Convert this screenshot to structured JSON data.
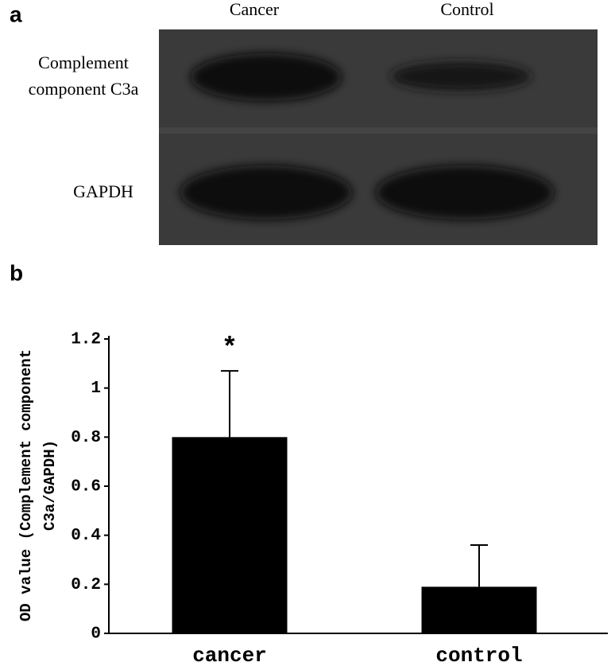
{
  "panel_a": {
    "label": "a",
    "columns": [
      "Cancer",
      "Control"
    ],
    "rows": [
      [
        "Complement",
        "component C3a"
      ],
      [
        "GAPDH"
      ]
    ]
  },
  "panel_b": {
    "label": "b"
  },
  "chart_data": {
    "type": "bar",
    "categories": [
      "cancer",
      "control"
    ],
    "values": [
      0.8,
      0.19
    ],
    "errors": [
      0.27,
      0.17
    ],
    "color": "#000000",
    "ylim": [
      0,
      1.2
    ],
    "yticks": [
      0,
      0.2,
      0.4,
      0.6,
      0.8,
      1,
      1.2
    ],
    "y_label": [
      "OD value (Complement component",
      "C3a/GAPDH)"
    ],
    "annotation": "*"
  }
}
